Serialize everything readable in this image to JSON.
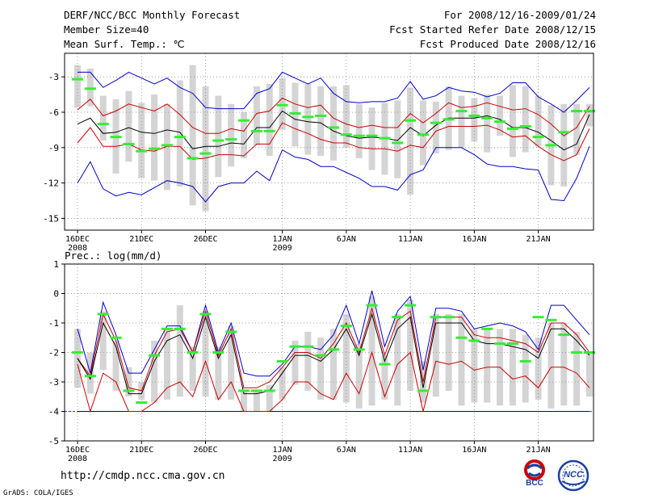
{
  "header": {
    "title": "DERF/NCC/BCC Monthly Forecast",
    "member_size": "Member Size=40",
    "variable": "Mean Surf. Temp.: ℃",
    "period": "For 2008/12/16-2009/01/24",
    "started": "Fcst Started Refer Date 2008/12/15",
    "produced": "Fcst Produced Date 2008/12/16"
  },
  "footer": {
    "url": "http://cmdp.ncc.cma.gov.cn",
    "grads": "GrADS: COLA/IGES",
    "logo1_text": "BCC",
    "logo2_text": "NCC"
  },
  "colors": {
    "envelope": "#0000cc",
    "band": "#cc0000",
    "mean": "#000000",
    "median": "#33ee33",
    "box": "#d4d4d4"
  },
  "chart_data": [
    {
      "type": "box-ensemble",
      "title": "Mean Surf. Temp.: ℃",
      "days": 40,
      "xticks": [
        {
          "day": 0,
          "label": "16DEC",
          "sub": "2008"
        },
        {
          "day": 5,
          "label": "21DEC",
          "sub": ""
        },
        {
          "day": 10,
          "label": "26DEC",
          "sub": ""
        },
        {
          "day": 16,
          "label": "1JAN",
          "sub": "2009"
        },
        {
          "day": 21,
          "label": "6JAN",
          "sub": ""
        },
        {
          "day": 26,
          "label": "11JAN",
          "sub": ""
        },
        {
          "day": 31,
          "label": "16JAN",
          "sub": ""
        },
        {
          "day": 36,
          "label": "21JAN",
          "sub": ""
        }
      ],
      "ylim": [
        -16,
        -1
      ],
      "yticks": [
        -3,
        -6,
        -9,
        -12,
        -15
      ],
      "series": {
        "max": [
          -2.6,
          -2.6,
          -3.9,
          -3.3,
          -2.6,
          -3.1,
          -3.6,
          -3.1,
          -3.9,
          -4.4,
          -5.6,
          -5.7,
          -5.7,
          -5.7,
          -4.4,
          -4.0,
          -2.6,
          -3.1,
          -3.6,
          -3.1,
          -4.4,
          -5.1,
          -5.2,
          -5.1,
          -5.1,
          -4.8,
          -3.4,
          -4.9,
          -4.6,
          -3.9,
          -4.2,
          -4.3,
          -4.7,
          -4.4,
          -3.5,
          -3.5,
          -4.7,
          -5.3,
          -6.0,
          -5.0,
          -3.9
        ],
        "hi": [
          -5.8,
          -4.9,
          -6.3,
          -5.9,
          -5.3,
          -5.6,
          -5.9,
          -5.3,
          -6.2,
          -7.3,
          -7.8,
          -7.8,
          -7.4,
          -7.6,
          -6.1,
          -5.9,
          -4.8,
          -5.3,
          -5.6,
          -5.4,
          -6.5,
          -7.0,
          -7.3,
          -7.1,
          -7.3,
          -7.3,
          -6.1,
          -6.9,
          -6.1,
          -5.2,
          -5.6,
          -5.5,
          -5.2,
          -5.5,
          -5.8,
          -5.7,
          -6.2,
          -7.0,
          -8.0,
          -7.3,
          -5.5
        ],
        "mean": [
          -7.0,
          -6.5,
          -7.8,
          -7.7,
          -7.3,
          -7.7,
          -7.8,
          -7.5,
          -7.7,
          -9.1,
          -8.9,
          -8.9,
          -8.6,
          -8.7,
          -7.3,
          -7.3,
          -5.9,
          -6.6,
          -6.8,
          -6.9,
          -7.6,
          -8.0,
          -8.2,
          -8.1,
          -8.2,
          -8.4,
          -7.3,
          -8.0,
          -7.1,
          -6.5,
          -6.5,
          -6.5,
          -6.3,
          -6.6,
          -7.3,
          -7.3,
          -7.7,
          -8.4,
          -9.2,
          -8.7,
          -6.2
        ],
        "lo": [
          -8.6,
          -7.3,
          -8.9,
          -8.9,
          -8.7,
          -9.2,
          -9.3,
          -8.9,
          -8.9,
          -10.0,
          -9.9,
          -9.6,
          -9.6,
          -9.7,
          -8.7,
          -8.7,
          -6.9,
          -7.4,
          -7.8,
          -8.3,
          -8.6,
          -8.6,
          -9.0,
          -9.1,
          -9.1,
          -9.3,
          -8.8,
          -9.0,
          -7.6,
          -7.2,
          -7.2,
          -7.2,
          -7.1,
          -7.5,
          -8.1,
          -8.0,
          -8.9,
          -9.6,
          -10.1,
          -9.6,
          -7.4
        ],
        "min": [
          -12.0,
          -10.2,
          -12.5,
          -13.1,
          -12.8,
          -13.0,
          -12.4,
          -11.8,
          -12.0,
          -12.3,
          -13.6,
          -12.3,
          -12.0,
          -12.0,
          -11.0,
          -11.8,
          -9.2,
          -9.8,
          -10.0,
          -10.6,
          -10.6,
          -11.1,
          -11.6,
          -12.3,
          -12.3,
          -12.6,
          -11.3,
          -10.9,
          -9.0,
          -9.0,
          -9.0,
          -9.6,
          -10.4,
          -10.6,
          -10.6,
          -10.8,
          -10.9,
          -13.4,
          -13.5,
          -11.6,
          -8.9
        ],
        "box_top": [
          -2.0,
          -2.3,
          -4.6,
          -4.9,
          -4.2,
          -5.2,
          -4.5,
          -5.3,
          -3.3,
          -2.0,
          -3.8,
          -4.6,
          -5.3,
          -6.0,
          -3.8,
          -3.6,
          -3.1,
          -3.5,
          -3.6,
          -3.8,
          -3.8,
          -3.7,
          -5.3,
          -5.6,
          -5.2,
          -5.0,
          -3.9,
          -5.0,
          -5.1,
          -3.8,
          -4.6,
          -4.8,
          -4.5,
          -4.6,
          -3.7,
          -3.8,
          -4.6,
          -5.4,
          -5.3,
          -5.3,
          -5.3
        ],
        "box_bot": [
          -5.6,
          -5.5,
          -8.4,
          -11.2,
          -10.2,
          -11.6,
          -11.8,
          -12.6,
          -12.3,
          -13.9,
          -14.4,
          -11.5,
          -10.6,
          -9.9,
          -8.8,
          -9.7,
          -7.5,
          -8.9,
          -9.6,
          -9.7,
          -10.1,
          -9.0,
          -9.9,
          -10.9,
          -11.3,
          -11.6,
          -13.0,
          -10.5,
          -9.5,
          -9.2,
          -9.0,
          -8.5,
          -9.4,
          -8.0,
          -9.8,
          -9.4,
          -8.9,
          -12.2,
          -12.3,
          -9.6,
          -7.2
        ],
        "median": [
          -3.2,
          -4.0,
          -7.0,
          -8.1,
          -8.7,
          -9.3,
          -9.1,
          -8.8,
          -8.1,
          -9.9,
          -9.5,
          -8.4,
          -8.3,
          -6.7,
          -7.6,
          -7.6,
          -5.4,
          -6.1,
          -6.4,
          -6.3,
          -7.3,
          -7.9,
          -8.0,
          -8.0,
          -8.2,
          -8.6,
          -6.7,
          -7.9,
          -6.9,
          -6.6,
          -5.9,
          -6.3,
          -6.5,
          -6.8,
          -7.4,
          -7.2,
          -8.1,
          -8.8,
          -7.7,
          -5.9,
          -5.9
        ]
      }
    },
    {
      "type": "box-ensemble",
      "title": "Prec.: log(mm/d)",
      "days": 40,
      "xticks": [
        {
          "day": 0,
          "label": "16DEC",
          "sub": "2008"
        },
        {
          "day": 5,
          "label": "21DEC",
          "sub": ""
        },
        {
          "day": 10,
          "label": "26DEC",
          "sub": ""
        },
        {
          "day": 16,
          "label": "1JAN",
          "sub": "2009"
        },
        {
          "day": 21,
          "label": "6JAN",
          "sub": ""
        },
        {
          "day": 26,
          "label": "11JAN",
          "sub": ""
        },
        {
          "day": 31,
          "label": "16JAN",
          "sub": ""
        },
        {
          "day": 36,
          "label": "21JAN",
          "sub": ""
        }
      ],
      "ylim": [
        -5,
        1
      ],
      "yticks": [
        1,
        0,
        -1,
        -2,
        -3,
        -4,
        -5
      ],
      "baseline": -4,
      "series": {
        "max": [
          -1.2,
          -2.7,
          -0.3,
          -1.4,
          -2.7,
          -2.7,
          -1.9,
          -1.1,
          -1.1,
          -2.0,
          -0.4,
          -2.0,
          -1.0,
          -2.7,
          -2.8,
          -2.8,
          -2.4,
          -1.8,
          -1.8,
          -1.9,
          -1.4,
          -0.4,
          -1.7,
          0.1,
          -1.8,
          -0.6,
          -0.1,
          -2.6,
          -0.5,
          -0.5,
          -0.6,
          -1.2,
          -1.1,
          -1.0,
          -1.1,
          -1.3,
          -1.9,
          -0.4,
          -0.4,
          -0.9,
          -1.4
        ],
        "hi": [
          -2.2,
          -2.8,
          -0.7,
          -1.6,
          -3.2,
          -3.3,
          -2.1,
          -1.3,
          -1.2,
          -2.0,
          -0.6,
          -2.1,
          -1.2,
          -3.2,
          -3.2,
          -3.0,
          -2.5,
          -2.0,
          -2.0,
          -2.2,
          -1.7,
          -1.0,
          -2.0,
          -0.5,
          -2.1,
          -0.9,
          -0.6,
          -3.0,
          -0.8,
          -0.8,
          -0.8,
          -1.4,
          -1.5,
          -1.5,
          -1.6,
          -1.7,
          -2.0,
          -1.0,
          -1.0,
          -1.4,
          -2.0
        ],
        "mean": [
          -2.2,
          -2.9,
          -1.0,
          -1.8,
          -3.4,
          -3.4,
          -2.3,
          -1.6,
          -1.4,
          -2.2,
          -0.8,
          -2.2,
          -1.4,
          -3.4,
          -3.4,
          -3.3,
          -2.7,
          -2.1,
          -2.1,
          -2.3,
          -1.9,
          -1.2,
          -2.1,
          -0.7,
          -2.3,
          -1.2,
          -0.8,
          -3.2,
          -1.0,
          -1.0,
          -1.0,
          -1.6,
          -1.7,
          -1.7,
          -1.8,
          -1.9,
          -2.2,
          -1.2,
          -1.2,
          -1.6,
          -2.1
        ],
        "lo": [
          -2.4,
          -4.0,
          -2.7,
          -3.0,
          -4.0,
          -4.0,
          -3.7,
          -3.2,
          -3.0,
          -3.5,
          -2.3,
          -3.6,
          -3.0,
          -4.0,
          -4.0,
          -4.0,
          -3.6,
          -3.0,
          -3.0,
          -3.4,
          -3.6,
          -2.7,
          -3.4,
          -2.0,
          -3.5,
          -2.4,
          -2.0,
          -4.0,
          -2.3,
          -2.4,
          -2.3,
          -2.6,
          -2.5,
          -2.5,
          -2.9,
          -2.8,
          -3.2,
          -2.5,
          -2.5,
          -2.7,
          -3.2
        ],
        "min": [
          -4.0,
          -4.0,
          -4.0,
          -4.0,
          -4.0,
          -4.0,
          -4.0,
          -4.0,
          -4.0,
          -4.0,
          -4.0,
          -4.0,
          -4.0,
          -4.0,
          -4.0,
          -4.0,
          -4.0,
          -4.0,
          -4.0,
          -4.0,
          -4.0,
          -4.0,
          -4.0,
          -4.0,
          -4.0,
          -4.0,
          -4.0,
          -4.0,
          -4.0,
          -4.0,
          -4.0,
          -4.0,
          -4.0,
          -4.0,
          -4.0,
          -4.0,
          -4.0,
          -4.0,
          -4.0,
          -4.0,
          -4.0
        ],
        "box_top": [
          -1.2,
          -2.0,
          -0.6,
          -1.6,
          -2.5,
          -3.0,
          -1.6,
          -1.2,
          -0.4,
          -1.8,
          -0.6,
          -1.8,
          -1.1,
          -3.3,
          -3.3,
          -3.1,
          -2.5,
          -1.6,
          -1.3,
          -1.5,
          -1.2,
          -0.7,
          -1.7,
          -0.1,
          -2.1,
          -0.7,
          -0.2,
          -2.3,
          -0.7,
          -0.7,
          -0.7,
          -1.2,
          -1.2,
          -1.2,
          -1.2,
          -1.4,
          -1.5,
          -1.0,
          -1.0,
          -1.3,
          -2.0
        ],
        "box_bot": [
          -3.2,
          -3.4,
          -2.6,
          -3.3,
          -3.5,
          -3.6,
          -3.7,
          -3.6,
          -3.5,
          -3.3,
          -3.5,
          -3.6,
          -3.6,
          -4.0,
          -4.0,
          -4.0,
          -3.6,
          -3.1,
          -3.3,
          -3.6,
          -3.6,
          -3.7,
          -3.9,
          -3.8,
          -3.6,
          -3.8,
          -3.3,
          -3.7,
          -3.5,
          -3.3,
          -3.8,
          -3.7,
          -3.7,
          -3.8,
          -3.8,
          -3.7,
          -3.6,
          -3.9,
          -3.8,
          -3.8,
          -3.5
        ],
        "median": [
          -2.0,
          -2.8,
          -0.7,
          -1.5,
          -3.3,
          -3.7,
          -2.1,
          -1.2,
          -1.2,
          -2.0,
          -0.7,
          -2.0,
          -1.3,
          -3.3,
          -3.3,
          -3.3,
          -2.3,
          -1.8,
          -1.8,
          -2.1,
          -1.9,
          -1.1,
          -1.9,
          -0.4,
          -2.4,
          -0.8,
          -0.4,
          -3.3,
          -0.8,
          -0.8,
          -1.5,
          -1.6,
          -1.2,
          -1.7,
          -1.7,
          -2.3,
          -0.8,
          -0.9,
          -1.4,
          -2.0,
          -2.0
        ]
      }
    }
  ]
}
